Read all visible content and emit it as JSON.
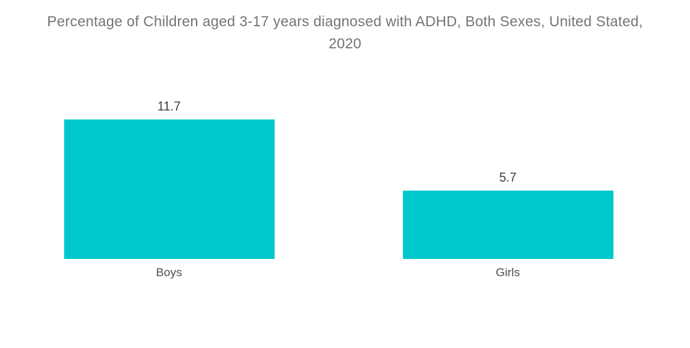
{
  "chart_data": {
    "type": "bar",
    "title": "Percentage of Children aged 3-17 years diagnosed with ADHD, Both Sexes, United Stated, 2020",
    "title_lines": [
      "Percentage of Children aged 3-17 years diagnosed with ADHD, Both Sexes, United Stated,",
      "2020"
    ],
    "categories": [
      "Boys",
      "Girls"
    ],
    "values": [
      11.7,
      5.7
    ],
    "value_labels": [
      "11.7",
      "5.7"
    ],
    "unit": "percent",
    "bar_color": "#00C9CE",
    "title_color": "#717478",
    "label_color": "#3f4042",
    "category_label_color": "#4d4e50",
    "background_color": "#ffffff",
    "xlabel": "",
    "ylabel": "",
    "ylim": [
      0,
      12
    ],
    "grid": false,
    "legend": false,
    "axes_visible": false
  }
}
